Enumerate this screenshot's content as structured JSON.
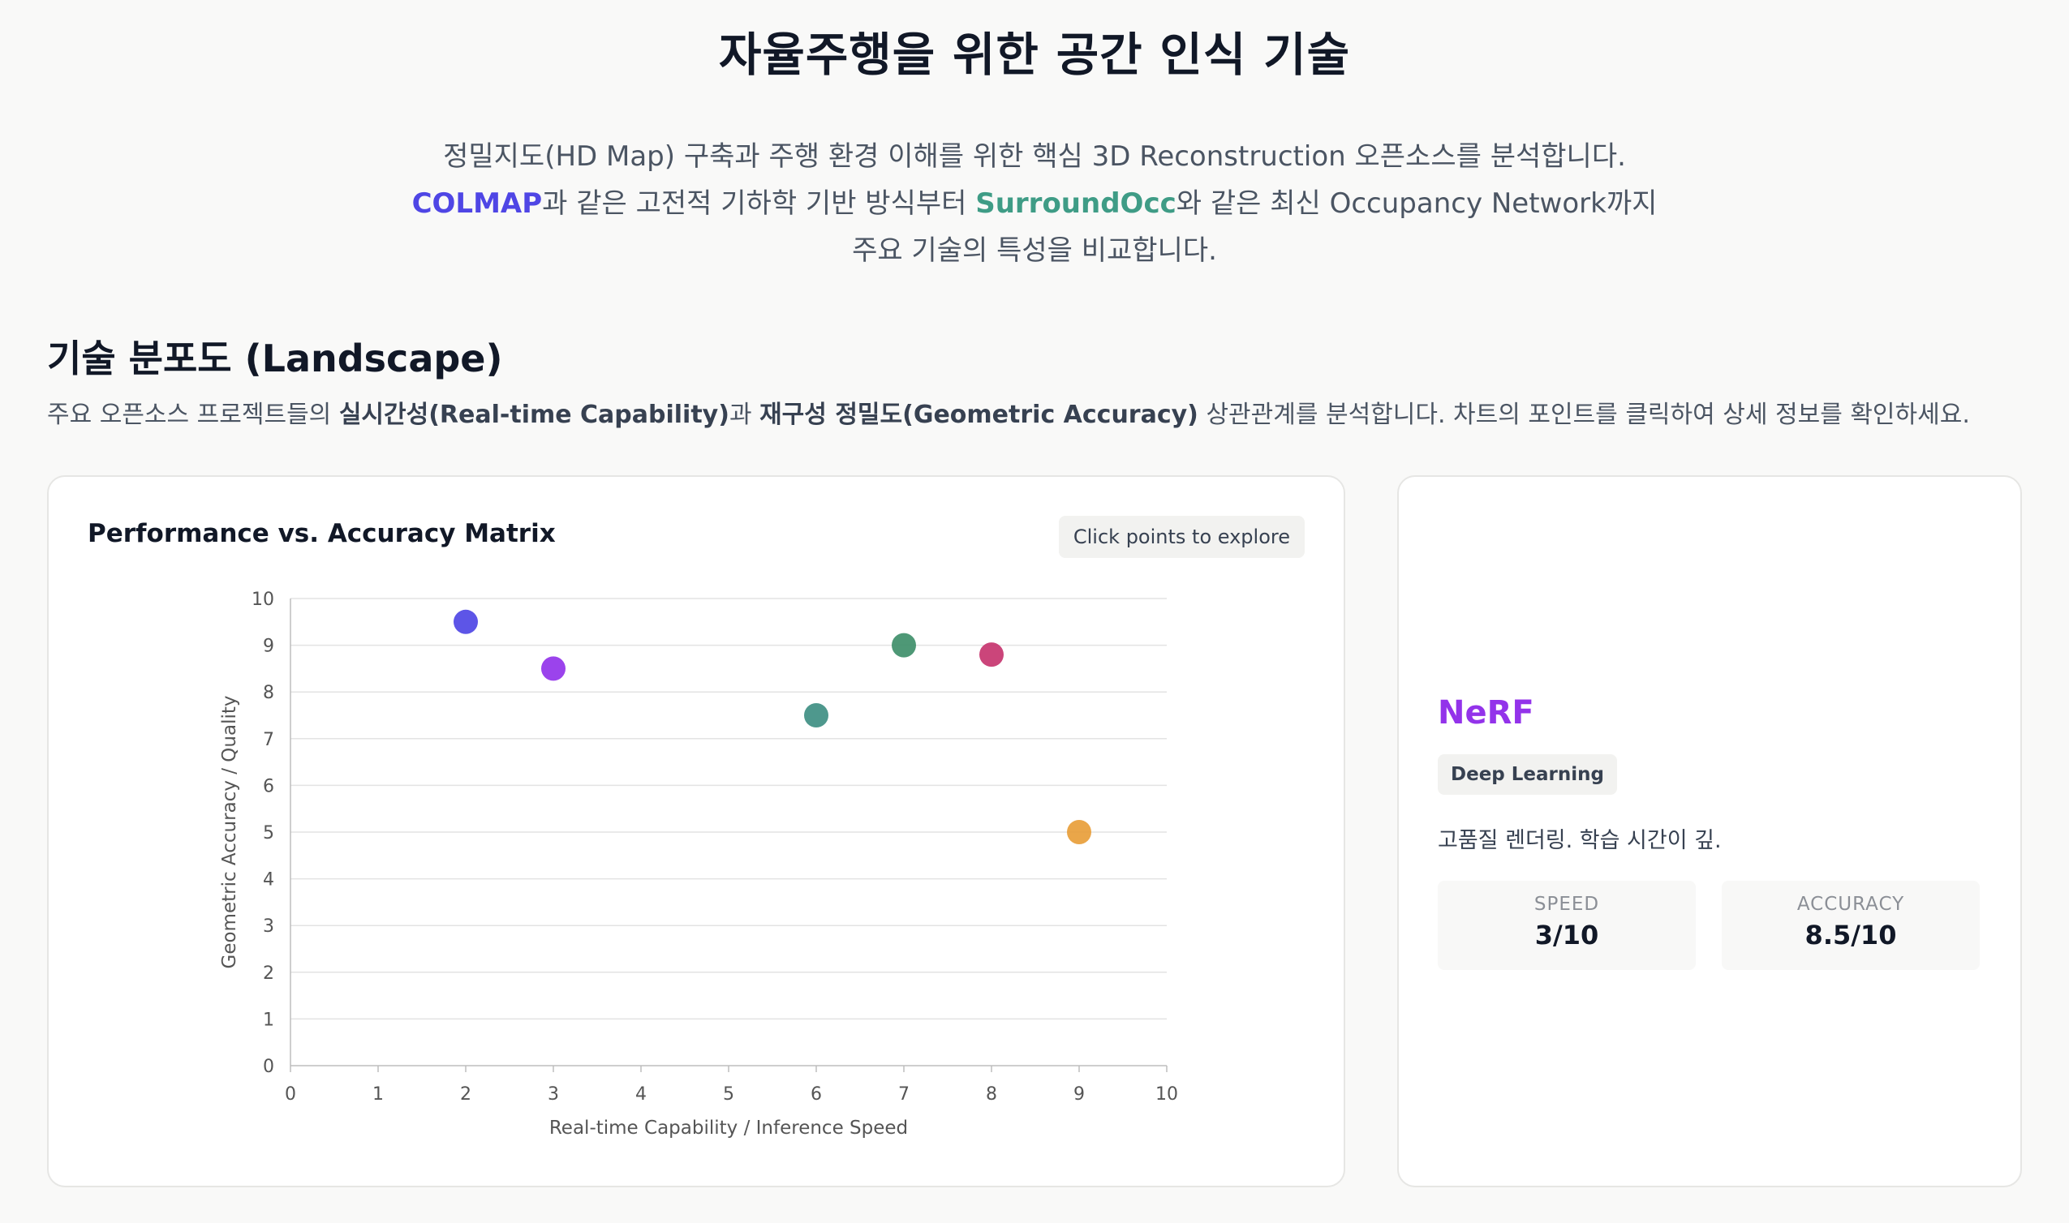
{
  "page": {
    "title": "자율주행을 위한 공간 인식 기술",
    "intro_line1": "정밀지도(HD Map) 구축과 주행 환경 이해를 위한 핵심 3D Reconstruction 오픈소스를 분석합니다.",
    "intro_line2_a": "COLMAP",
    "intro_line2_b": "과 같은 고전적 기하학 기반 방식부터 ",
    "intro_line2_c": "SurroundOcc",
    "intro_line2_d": "와 같은 최신 Occupancy Network까지",
    "intro_line3": "주요 기술의 특성을 비교합니다."
  },
  "section": {
    "title": "기술 분포도 (Landscape)",
    "desc_a": "주요 오픈소스 프로젝트들의 ",
    "desc_b": "실시간성(Real-time Capability)",
    "desc_c": "과 ",
    "desc_d": "재구성 정밀도(Geometric Accuracy)",
    "desc_e": " 상관관계를 분석합니다. 차트의 포인트를 클릭하여 상세 정보를 확인하세요."
  },
  "chart_card": {
    "title": "Performance vs. Accuracy Matrix",
    "badge": "Click points to explore"
  },
  "chart_data": {
    "type": "scatter",
    "title": "Performance vs. Accuracy Matrix",
    "xlabel": "Real-time Capability / Inference Speed",
    "ylabel": "Geometric Accuracy / Quality",
    "xlim": [
      0,
      10
    ],
    "ylim": [
      0,
      10
    ],
    "x_ticks": [
      "0",
      "1",
      "2",
      "3",
      "4",
      "5",
      "6",
      "7",
      "8",
      "9",
      "10"
    ],
    "y_ticks": [
      "0",
      "1",
      "2",
      "3",
      "4",
      "5",
      "6",
      "7",
      "8",
      "9",
      "10"
    ],
    "grid": "horizontal",
    "points": [
      {
        "x": 2,
        "y": 9.5,
        "color": "#4f46e5"
      },
      {
        "x": 3,
        "y": 8.5,
        "color": "#9333ea"
      },
      {
        "x": 6,
        "y": 7.5,
        "color": "#3f8f83"
      },
      {
        "x": 7,
        "y": 9,
        "color": "#3f8f6a"
      },
      {
        "x": 8,
        "y": 8.8,
        "color": "#c7356f"
      },
      {
        "x": 9,
        "y": 5,
        "color": "#e89e3a"
      }
    ]
  },
  "detail": {
    "name": "NeRF",
    "name_color": "#9333ea",
    "tag": "Deep Learning",
    "description": "고품질 렌더링. 학습 시간이 깊.",
    "speed_label": "SPEED",
    "speed_value": "3/10",
    "accuracy_label": "ACCURACY",
    "accuracy_value": "8.5/10"
  }
}
